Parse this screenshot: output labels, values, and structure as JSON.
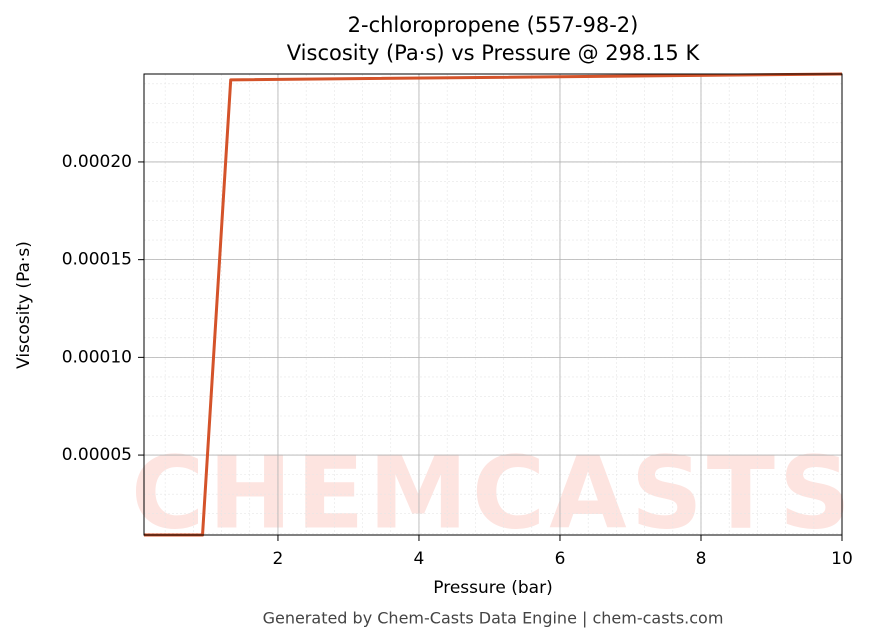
{
  "chart_data": {
    "type": "line",
    "title": "2-chloropropene (557-98-2)",
    "subtitle": "Viscosity (Pa·s) vs Pressure @ 298.15 K",
    "x_label": "Pressure (bar)",
    "y_label": "Viscosity (Pa·s)",
    "x": [
      0.1,
      0.93,
      1.33,
      10
    ],
    "series": [
      {
        "name": "Viscosity",
        "color": "#d4532a",
        "values": [
          9.1e-06,
          9.1e-06,
          0.000242,
          0.000245
        ]
      }
    ],
    "xlim": [
      0.1,
      10
    ],
    "ylim": [
      9.1e-06,
      0.000245
    ],
    "xticks": [
      2,
      4,
      6,
      8,
      10
    ],
    "yticks": [
      {
        "value": 5e-05,
        "label": "0.00005"
      },
      {
        "value": 0.0001,
        "label": "0.00010"
      },
      {
        "value": 0.00015,
        "label": "0.00015"
      },
      {
        "value": 0.0002,
        "label": "0.00020"
      }
    ],
    "grid": true,
    "watermark": "CHEMCASTS",
    "footer": "Generated by Chem-Casts Data Engine | chem-casts.com"
  }
}
